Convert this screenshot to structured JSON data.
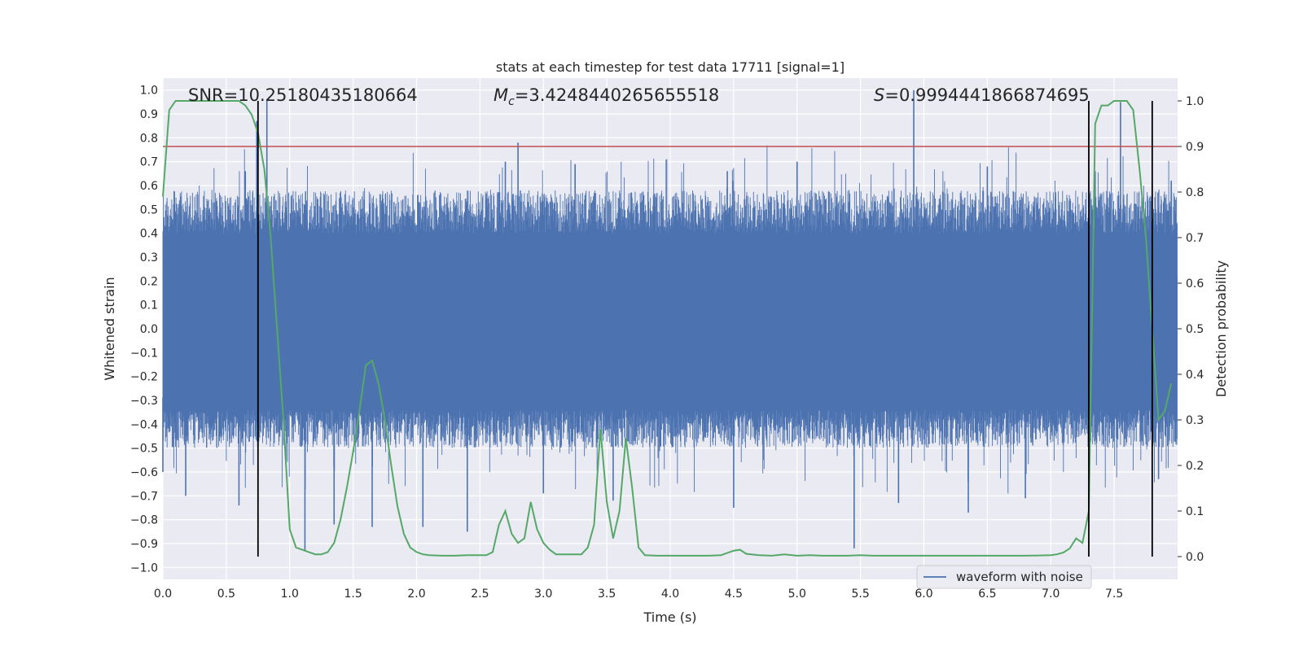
{
  "chart_data": {
    "type": "line",
    "title": "stats at each timestep for test data 17711 [signal=1]",
    "xlabel": "Time (s)",
    "ylabel": "Whitened strain",
    "ylabel_right": "Detection probability",
    "xlim": [
      0.0,
      8.0
    ],
    "ylim": [
      -1.05,
      1.05
    ],
    "ylim_right": [
      -0.05,
      1.05
    ],
    "x_ticks": [
      "0.0",
      "0.5",
      "1.0",
      "1.5",
      "2.0",
      "2.5",
      "3.0",
      "3.5",
      "4.0",
      "4.5",
      "5.0",
      "5.5",
      "6.0",
      "6.5",
      "7.0",
      "7.5"
    ],
    "y_ticks": [
      "1.0",
      "0.9",
      "0.8",
      "0.7",
      "0.6",
      "0.5",
      "0.4",
      "0.3",
      "0.2",
      "0.1",
      "0.0",
      "-0.1",
      "-0.2",
      "-0.3",
      "-0.4",
      "-0.5",
      "-0.6",
      "-0.7",
      "-0.8",
      "-0.9",
      "-1.0"
    ],
    "y_ticks_right": [
      "1.0",
      "0.9",
      "0.8",
      "0.7",
      "0.6",
      "0.5",
      "0.4",
      "0.3",
      "0.2",
      "0.1",
      "0.0"
    ],
    "grid": true,
    "legend": {
      "position": "lower-right",
      "entries": [
        "waveform with noise"
      ]
    },
    "annotations": {
      "snr": "SNR=10.25180435180664",
      "mc_symbol": "M",
      "mc_sub": "c",
      "mc_value": "=3.4248440265655518",
      "s_symbol": "S",
      "s_value": "=0.9994441866874695"
    },
    "threshold": {
      "y_right": 0.9,
      "color": "#c44e52"
    },
    "vertical_lines_x": [
      0.75,
      7.3,
      7.8
    ],
    "waveform": {
      "color": "#4c72b0",
      "dense_band": [
        -0.36,
        0.42
      ],
      "spikes": [
        {
          "x": 0.74,
          "y": 0.87
        },
        {
          "x": 0.82,
          "y": 0.96
        },
        {
          "x": 2.8,
          "y": 0.78
        },
        {
          "x": 5.92,
          "y": 1.0
        },
        {
          "x": 7.55,
          "y": 0.95
        },
        {
          "x": 5.45,
          "y": -0.92
        },
        {
          "x": 1.12,
          "y": -0.93
        },
        {
          "x": 1.65,
          "y": -0.83
        },
        {
          "x": 6.35,
          "y": -0.77
        },
        {
          "x": 3.55,
          "y": -0.72
        },
        {
          "x": 2.05,
          "y": -0.83
        },
        {
          "x": 0.18,
          "y": -0.7
        },
        {
          "x": 0.65,
          "y": 0.66
        },
        {
          "x": 2.7,
          "y": 0.7
        },
        {
          "x": 3.25,
          "y": 0.69
        },
        {
          "x": 4.45,
          "y": 0.66
        },
        {
          "x": 5.0,
          "y": 0.7
        },
        {
          "x": 6.5,
          "y": 0.68
        },
        {
          "x": 7.35,
          "y": 0.66
        },
        {
          "x": 7.95,
          "y": 0.62
        },
        {
          "x": 0.0,
          "y": -0.6
        },
        {
          "x": 0.6,
          "y": -0.74
        },
        {
          "x": 1.35,
          "y": -0.82
        },
        {
          "x": 2.4,
          "y": -0.85
        },
        {
          "x": 3.0,
          "y": -0.69
        },
        {
          "x": 4.5,
          "y": -0.75
        },
        {
          "x": 5.8,
          "y": -0.73
        },
        {
          "x": 6.8,
          "y": -0.71
        },
        {
          "x": 7.85,
          "y": -0.63
        }
      ]
    },
    "series": [
      {
        "color": "#55a868",
        "axis": "right",
        "x": [
          0.0,
          0.05,
          0.1,
          0.2,
          0.3,
          0.4,
          0.5,
          0.6,
          0.65,
          0.7,
          0.75,
          0.8,
          0.85,
          0.9,
          0.95,
          1.0,
          1.05,
          1.1,
          1.15,
          1.2,
          1.25,
          1.3,
          1.35,
          1.4,
          1.45,
          1.5,
          1.55,
          1.6,
          1.65,
          1.7,
          1.75,
          1.8,
          1.85,
          1.9,
          1.95,
          2.0,
          2.05,
          2.1,
          2.2,
          2.3,
          2.4,
          2.5,
          2.55,
          2.6,
          2.65,
          2.7,
          2.75,
          2.8,
          2.85,
          2.9,
          2.95,
          3.0,
          3.05,
          3.1,
          3.2,
          3.3,
          3.35,
          3.4,
          3.45,
          3.5,
          3.55,
          3.6,
          3.65,
          3.7,
          3.75,
          3.8,
          3.9,
          4.0,
          4.1,
          4.2,
          4.3,
          4.4,
          4.5,
          4.55,
          4.6,
          4.7,
          4.8,
          4.9,
          5.0,
          5.1,
          5.2,
          5.3,
          5.4,
          5.5,
          5.6,
          5.7,
          5.8,
          5.9,
          6.0,
          6.2,
          6.4,
          6.6,
          6.8,
          7.0,
          7.05,
          7.1,
          7.15,
          7.2,
          7.25,
          7.3,
          7.35,
          7.4,
          7.45,
          7.5,
          7.55,
          7.6,
          7.65,
          7.7,
          7.75,
          7.8,
          7.85,
          7.9,
          7.95
        ],
        "y": [
          0.79,
          0.98,
          1.0,
          1.0,
          1.0,
          1.0,
          1.0,
          1.0,
          0.99,
          0.97,
          0.93,
          0.85,
          0.7,
          0.5,
          0.3,
          0.06,
          0.02,
          0.015,
          0.01,
          0.005,
          0.005,
          0.01,
          0.03,
          0.08,
          0.15,
          0.23,
          0.32,
          0.42,
          0.43,
          0.38,
          0.3,
          0.2,
          0.11,
          0.05,
          0.02,
          0.01,
          0.005,
          0.003,
          0.002,
          0.002,
          0.003,
          0.003,
          0.003,
          0.01,
          0.07,
          0.1,
          0.05,
          0.03,
          0.04,
          0.12,
          0.06,
          0.03,
          0.015,
          0.005,
          0.005,
          0.005,
          0.02,
          0.07,
          0.28,
          0.12,
          0.04,
          0.1,
          0.26,
          0.15,
          0.02,
          0.003,
          0.002,
          0.002,
          0.002,
          0.002,
          0.002,
          0.003,
          0.013,
          0.015,
          0.006,
          0.003,
          0.002,
          0.005,
          0.002,
          0.003,
          0.002,
          0.002,
          0.002,
          0.003,
          0.002,
          0.002,
          0.002,
          0.002,
          0.002,
          0.002,
          0.002,
          0.002,
          0.002,
          0.003,
          0.005,
          0.009,
          0.018,
          0.04,
          0.03,
          0.1,
          0.95,
          0.99,
          0.99,
          1.0,
          1.0,
          1.0,
          0.98,
          0.85,
          0.7,
          0.5,
          0.3,
          0.32,
          0.38
        ]
      }
    ]
  }
}
